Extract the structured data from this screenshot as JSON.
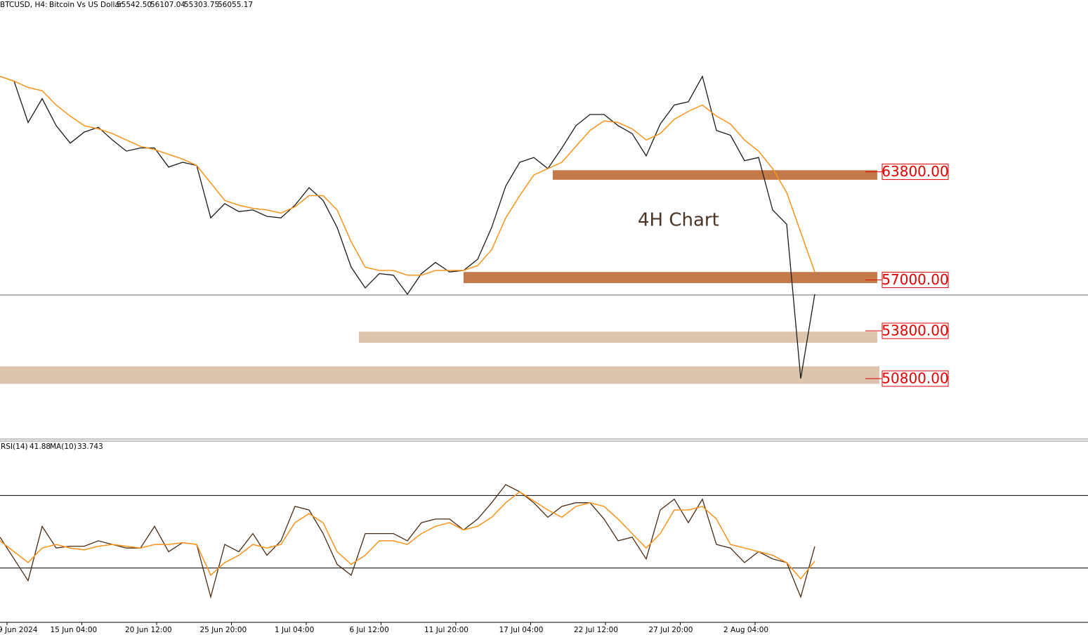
{
  "header": {
    "symbol": "BTCUSD, H4:",
    "description": "Bitcoin Vs US Dollar",
    "ohlc": [
      {
        "value": 55542.5,
        "label": "55542.50"
      },
      {
        "value": 56107.04,
        "label": "56107.04"
      },
      {
        "value": 55303.75,
        "label": "55303.75"
      },
      {
        "value": 56055.17,
        "label": "56055.17"
      }
    ]
  },
  "chart_data": [
    {
      "type": "line",
      "annotation": "4H Chart",
      "ylim": [
        47000,
        74600
      ],
      "series": [
        {
          "color": "#1a1a1a",
          "values": [
            69800,
            69500,
            66900,
            68400,
            66700,
            65600,
            66300,
            66600,
            65800,
            65100,
            65300,
            65300,
            64100,
            64400,
            64200,
            60900,
            61800,
            61300,
            61400,
            61000,
            60900,
            61700,
            62800,
            62000,
            60300,
            57800,
            56500,
            57400,
            57300,
            56100,
            57400,
            58100,
            57500,
            57600,
            58300,
            60300,
            62900,
            64400,
            64700,
            64000,
            65300,
            66700,
            67400,
            67400,
            66700,
            66200,
            64800,
            66800,
            68000,
            68200,
            69800,
            66400,
            66100,
            64500,
            64700,
            61400,
            60500,
            50800,
            56100
          ]
        },
        {
          "color": "#f7931a",
          "values": [
            69800,
            69500,
            69100,
            68900,
            68000,
            67300,
            66700,
            66500,
            66200,
            65800,
            65400,
            65200,
            64900,
            64600,
            64200,
            63100,
            62000,
            61700,
            61500,
            61400,
            61200,
            61600,
            62300,
            62300,
            61400,
            59400,
            57800,
            57600,
            57600,
            57300,
            57300,
            57600,
            57600,
            57600,
            57900,
            58900,
            60900,
            62300,
            63600,
            64000,
            64400,
            65400,
            66400,
            67000,
            66900,
            66500,
            65800,
            66200,
            67100,
            67600,
            68000,
            67300,
            66800,
            65800,
            65100,
            64000,
            62500,
            60000,
            57500
          ]
        }
      ],
      "levels": [
        {
          "value": 63800,
          "label": "63800.00",
          "band": [
            63300,
            63900
          ],
          "color": "#c47a48"
        },
        {
          "value": 57000,
          "label": "57000.00",
          "band": [
            56800,
            57500
          ],
          "color": "#c47a48"
        },
        {
          "value": 53800,
          "label": "53800.00",
          "band": [
            53050,
            53750
          ],
          "color": "#dcc4ad"
        },
        {
          "value": 50800,
          "label": "50800.00",
          "band": [
            50470,
            51570
          ],
          "color": "#dcc4ad"
        }
      ]
    },
    {
      "type": "line",
      "indicator": "RSI(14)",
      "rsi": 41.88,
      "ma_label": "MA(10)",
      "ma": 33.743,
      "ylim": [
        0,
        100
      ],
      "levels": [
        30,
        70
      ],
      "series": [
        {
          "color": "#4a2a12",
          "values": [
            47,
            35,
            23,
            53,
            41,
            42,
            42,
            45,
            43,
            41,
            41,
            53,
            39,
            44,
            43,
            14,
            43,
            39,
            49,
            37,
            45,
            64,
            62,
            49,
            32,
            26,
            49,
            49,
            49,
            45,
            55,
            57,
            57,
            51,
            57,
            66,
            76,
            72,
            66,
            58,
            64,
            66,
            66,
            57,
            45,
            47,
            35,
            62,
            68,
            55,
            68,
            43,
            41,
            33,
            39,
            35,
            33,
            14,
            41.88
          ]
        },
        {
          "color": "#f7931a",
          "values": [
            45,
            39,
            33,
            41,
            43,
            41,
            40,
            42,
            43,
            42,
            41,
            43,
            43,
            44,
            43,
            26,
            33,
            37,
            43,
            41,
            43,
            55,
            60,
            55,
            39,
            32,
            37,
            45,
            45,
            43,
            49,
            53,
            55,
            51,
            53,
            58,
            66,
            72,
            67,
            62,
            58,
            64,
            66,
            64,
            57,
            49,
            41,
            49,
            62,
            62,
            64,
            57,
            43,
            41,
            39,
            37,
            33,
            24,
            33.743
          ]
        }
      ],
      "xticks": [
        "9 Jun 2024",
        "15 Jun 04:00",
        "20 Jun 12:00",
        "25 Jun 20:00",
        "1 Jul 04:00",
        "6 Jul 12:00",
        "11 Jul 20:00",
        "17 Jul 04:00",
        "22 Jul 12:00",
        "27 Jul 20:00",
        "2 Aug 04:00"
      ]
    }
  ]
}
